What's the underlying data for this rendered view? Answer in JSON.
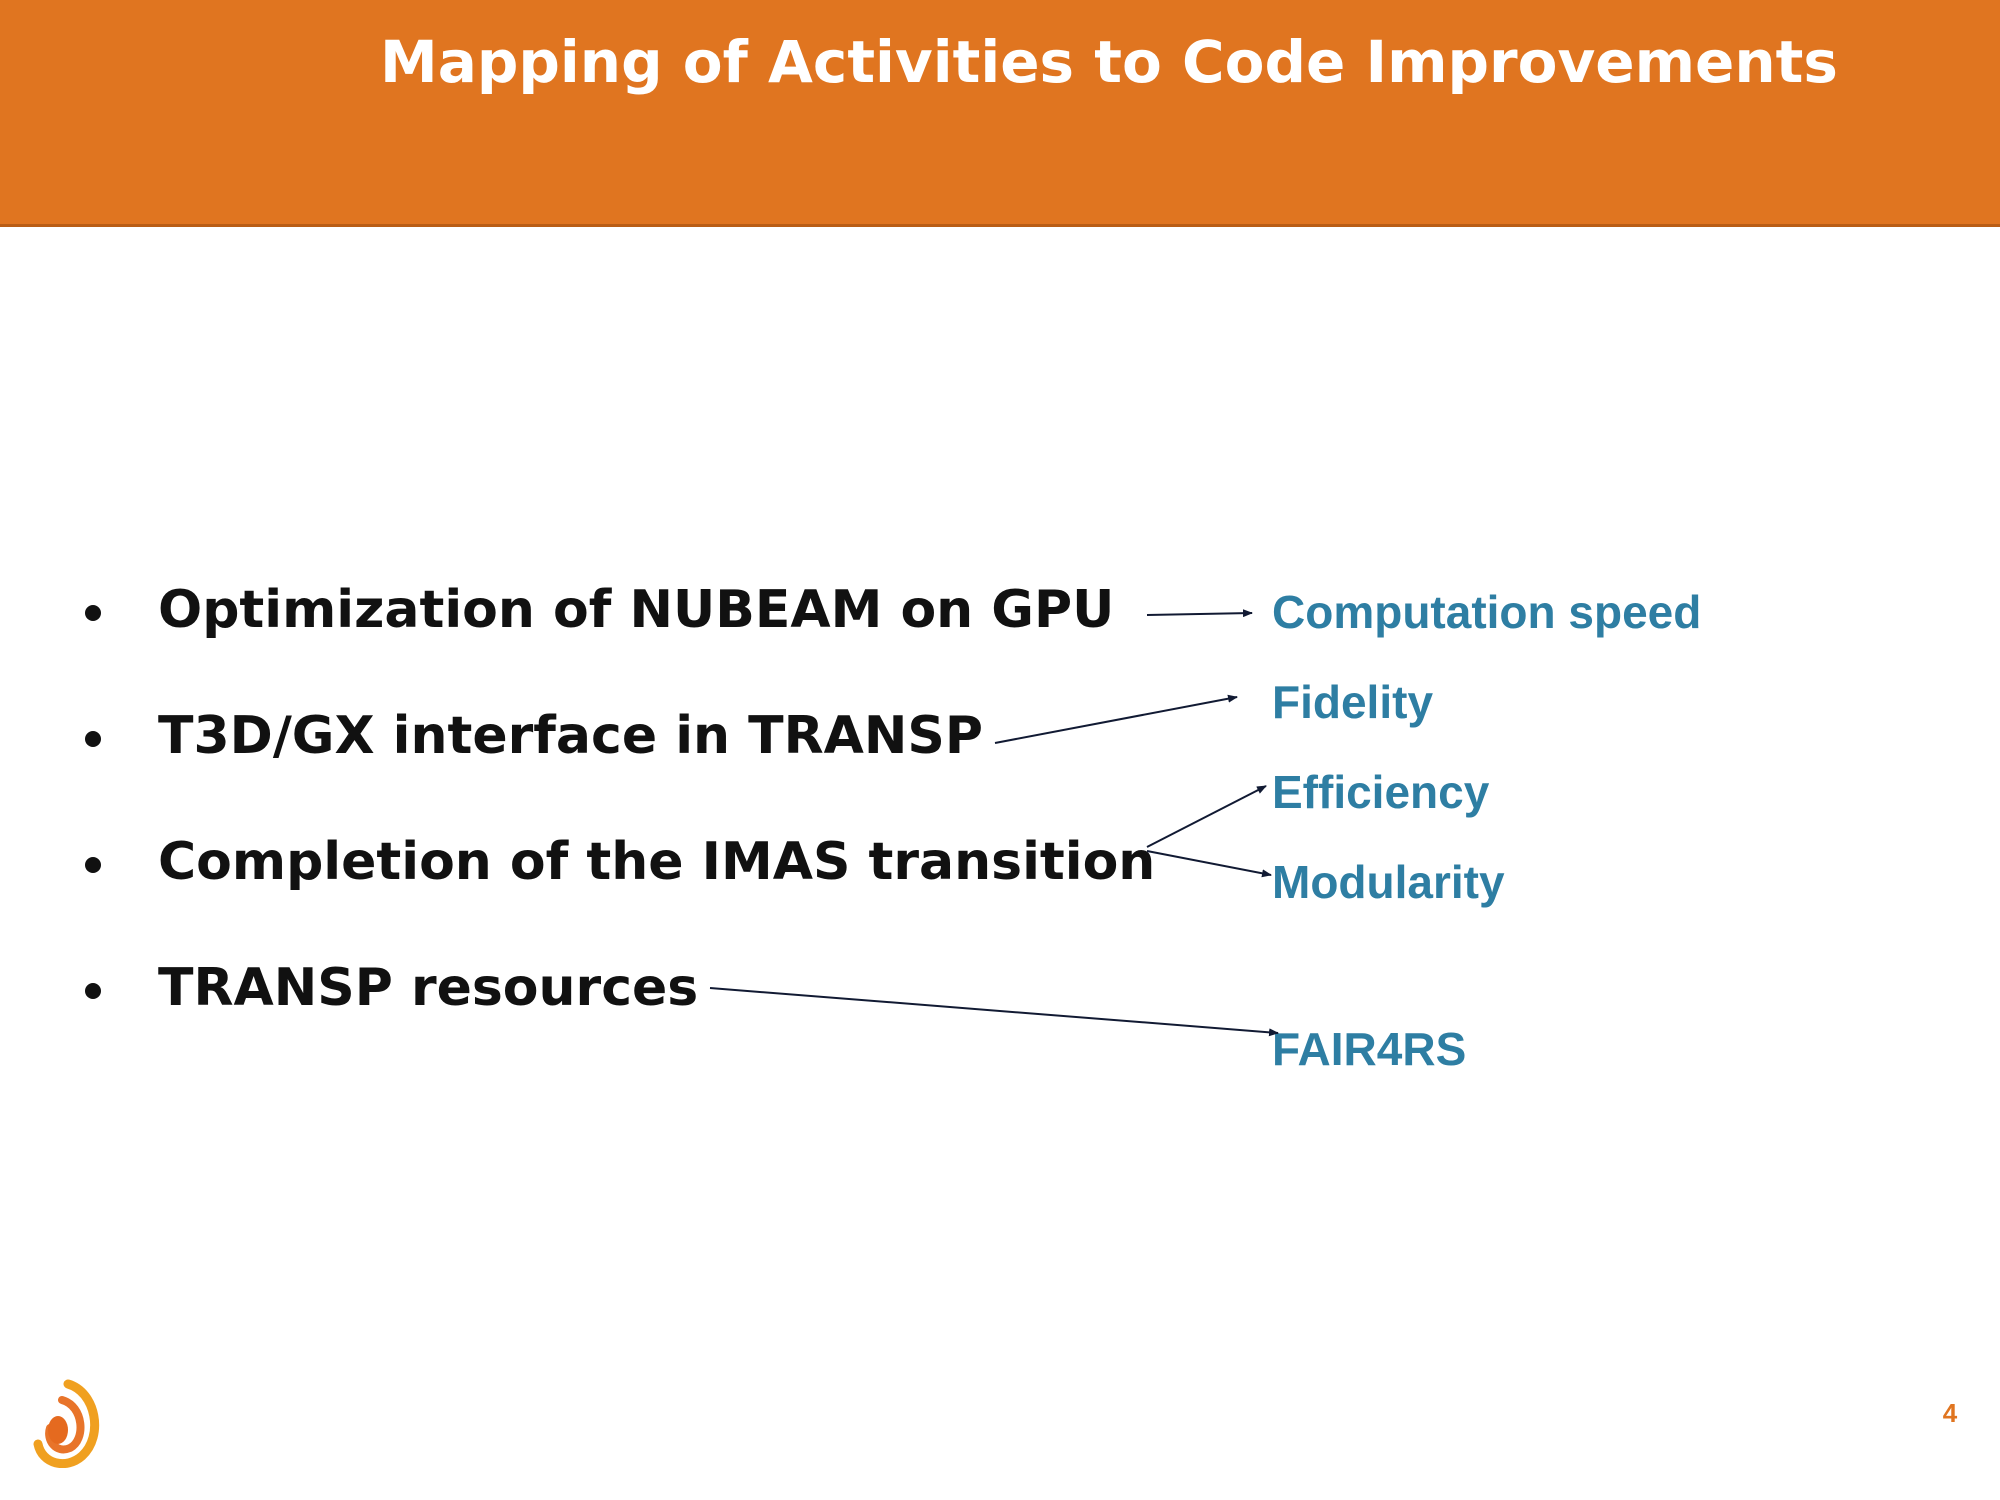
{
  "slide": {
    "title": "Mapping of Activities to Code Improvements",
    "page_number": "4",
    "accent_color": "#e07520",
    "target_color": "#2e7ea3"
  },
  "activities": [
    "Optimization of NUBEAM on GPU",
    "T3D/GX interface in TRANSP",
    "Completion of the IMAS transition",
    "TRANSP resources"
  ],
  "improvements": [
    "Computation speed",
    "Fidelity",
    "Efficiency",
    "Modularity",
    "FAIR4RS"
  ],
  "mappings": [
    {
      "from": "Optimization of NUBEAM on GPU",
      "to": "Computation speed"
    },
    {
      "from": "T3D/GX interface in TRANSP",
      "to": "Fidelity"
    },
    {
      "from": "Completion of the IMAS transition",
      "to": "Efficiency"
    },
    {
      "from": "Completion of the IMAS transition",
      "to": "Modularity"
    },
    {
      "from": "TRANSP resources",
      "to": "FAIR4RS"
    }
  ],
  "logo": {
    "icon": "spiral-logo-icon"
  }
}
